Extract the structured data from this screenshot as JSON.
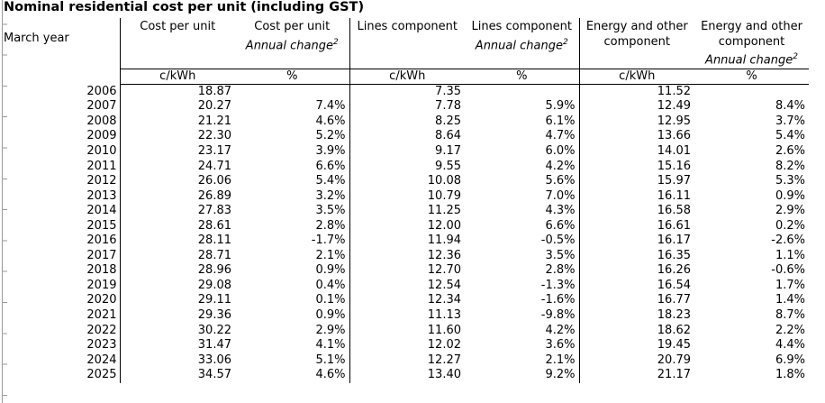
{
  "title": "Nominal residential cost per unit (including GST)",
  "row_axis_label": "March year",
  "columns": [
    {
      "header": "Cost per unit",
      "unit": "c/kWh"
    },
    {
      "header": "Cost per unit",
      "subheader": "Annual change",
      "sup": "2",
      "unit": "%"
    },
    {
      "header": "Lines component",
      "unit": "c/kWh"
    },
    {
      "header": "Lines component",
      "subheader": "Annual change",
      "sup": "2",
      "unit": "%"
    },
    {
      "header": "Energy and other component",
      "unit": "c/kWh"
    },
    {
      "header": "Energy and other component",
      "subheader": "Annual change",
      "sup": "2",
      "unit": "%"
    }
  ],
  "rows": [
    {
      "year": "2006",
      "values": [
        "18.87",
        "",
        "7.35",
        "",
        "11.52",
        ""
      ]
    },
    {
      "year": "2007",
      "values": [
        "20.27",
        "7.4%",
        "7.78",
        "5.9%",
        "12.49",
        "8.4%"
      ]
    },
    {
      "year": "2008",
      "values": [
        "21.21",
        "4.6%",
        "8.25",
        "6.1%",
        "12.95",
        "3.7%"
      ]
    },
    {
      "year": "2009",
      "values": [
        "22.30",
        "5.2%",
        "8.64",
        "4.7%",
        "13.66",
        "5.4%"
      ]
    },
    {
      "year": "2010",
      "values": [
        "23.17",
        "3.9%",
        "9.17",
        "6.0%",
        "14.01",
        "2.6%"
      ]
    },
    {
      "year": "2011",
      "values": [
        "24.71",
        "6.6%",
        "9.55",
        "4.2%",
        "15.16",
        "8.2%"
      ]
    },
    {
      "year": "2012",
      "values": [
        "26.06",
        "5.4%",
        "10.08",
        "5.6%",
        "15.97",
        "5.3%"
      ]
    },
    {
      "year": "2013",
      "values": [
        "26.89",
        "3.2%",
        "10.79",
        "7.0%",
        "16.11",
        "0.9%"
      ]
    },
    {
      "year": "2014",
      "values": [
        "27.83",
        "3.5%",
        "11.25",
        "4.3%",
        "16.58",
        "2.9%"
      ]
    },
    {
      "year": "2015",
      "values": [
        "28.61",
        "2.8%",
        "12.00",
        "6.6%",
        "16.61",
        "0.2%"
      ]
    },
    {
      "year": "2016",
      "values": [
        "28.11",
        "-1.7%",
        "11.94",
        "-0.5%",
        "16.17",
        "-2.6%"
      ]
    },
    {
      "year": "2017",
      "values": [
        "28.71",
        "2.1%",
        "12.36",
        "3.5%",
        "16.35",
        "1.1%"
      ]
    },
    {
      "year": "2018",
      "values": [
        "28.96",
        "0.9%",
        "12.70",
        "2.8%",
        "16.26",
        "-0.6%"
      ]
    },
    {
      "year": "2019",
      "values": [
        "29.08",
        "0.4%",
        "12.54",
        "-1.3%",
        "16.54",
        "1.7%"
      ]
    },
    {
      "year": "2020",
      "values": [
        "29.11",
        "0.1%",
        "12.34",
        "-1.6%",
        "16.77",
        "1.4%"
      ]
    },
    {
      "year": "2021",
      "values": [
        "29.36",
        "0.9%",
        "11.13",
        "-9.8%",
        "18.23",
        "8.7%"
      ]
    },
    {
      "year": "2022",
      "values": [
        "30.22",
        "2.9%",
        "11.60",
        "4.2%",
        "18.62",
        "2.2%"
      ]
    },
    {
      "year": "2023",
      "values": [
        "31.47",
        "4.1%",
        "12.02",
        "3.6%",
        "19.45",
        "4.4%"
      ]
    },
    {
      "year": "2024",
      "values": [
        "33.06",
        "5.1%",
        "12.27",
        "2.1%",
        "20.79",
        "6.9%"
      ]
    },
    {
      "year": "2025",
      "values": [
        "34.57",
        "4.6%",
        "13.40",
        "9.2%",
        "21.17",
        "1.8%"
      ]
    }
  ]
}
